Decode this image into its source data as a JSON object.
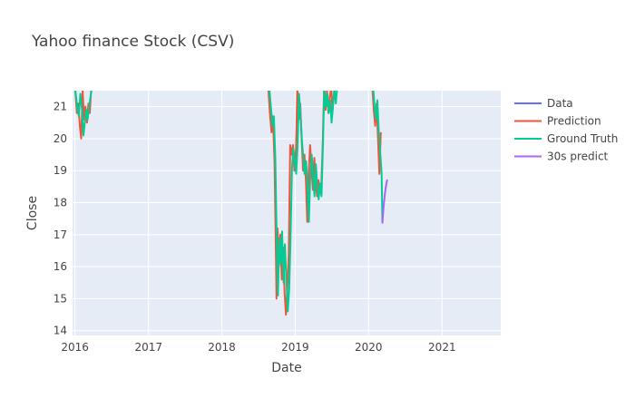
{
  "chart_data": {
    "type": "line",
    "title": "Yahoo finance Stock (CSV)",
    "xlabel": "Date",
    "ylabel": "Close",
    "xlim": [
      "2015-12-20",
      "2021-10-20"
    ],
    "ylim": [
      13.85,
      21.5
    ],
    "x_ticks": [
      "2016",
      "2017",
      "2018",
      "2019",
      "2020",
      "2021"
    ],
    "x_tick_dates": [
      "2016-01-01",
      "2017-01-01",
      "2018-01-01",
      "2019-01-01",
      "2020-01-01",
      "2021-01-01"
    ],
    "y_ticks": [
      14,
      15,
      16,
      17,
      18,
      19,
      20,
      21
    ],
    "grid": true,
    "legend_position": "right",
    "colors": {
      "Data": "#636efa",
      "Prediction": "#ef553b",
      "Ground Truth": "#00cc96",
      "30s predict": "#ab63fa"
    },
    "series": [
      {
        "name": "Data",
        "points": []
      },
      {
        "name": "Prediction",
        "points": [
          [
            "2016-01-01",
            21.6
          ],
          [
            "2016-01-10",
            20.8
          ],
          [
            "2016-01-18",
            21.1
          ],
          [
            "2016-01-25",
            20.4
          ],
          [
            "2016-02-01",
            20.0
          ],
          [
            "2016-02-08",
            21.5
          ],
          [
            "2016-02-15",
            20.6
          ],
          [
            "2016-02-22",
            21.0
          ],
          [
            "2016-03-01",
            20.5
          ],
          [
            "2016-03-08",
            21.1
          ],
          [
            "2016-03-15",
            20.8
          ],
          [
            "2016-03-22",
            21.6
          ],
          [
            "2018-08-20",
            21.6
          ],
          [
            "2018-08-28",
            20.8
          ],
          [
            "2018-09-05",
            20.2
          ],
          [
            "2018-09-12",
            20.7
          ],
          [
            "2018-09-20",
            19.3
          ],
          [
            "2018-09-25",
            17.3
          ],
          [
            "2018-09-30",
            15.0
          ],
          [
            "2018-10-05",
            17.2
          ],
          [
            "2018-10-12",
            16.0
          ],
          [
            "2018-10-19",
            17.0
          ],
          [
            "2018-10-26",
            15.6
          ],
          [
            "2018-11-02",
            16.6
          ],
          [
            "2018-11-09",
            15.2
          ],
          [
            "2018-11-16",
            14.5
          ],
          [
            "2018-11-23",
            15.4
          ],
          [
            "2018-11-30",
            16.4
          ],
          [
            "2018-12-07",
            19.8
          ],
          [
            "2018-12-14",
            19.5
          ],
          [
            "2018-12-21",
            19.8
          ],
          [
            "2018-12-28",
            19.0
          ],
          [
            "2019-01-05",
            19.7
          ],
          [
            "2019-01-12",
            21.6
          ],
          [
            "2019-01-19",
            20.6
          ],
          [
            "2019-01-26",
            21.1
          ],
          [
            "2019-02-02",
            20.0
          ],
          [
            "2019-02-09",
            19.0
          ],
          [
            "2019-02-16",
            19.5
          ],
          [
            "2019-02-23",
            18.7
          ],
          [
            "2019-03-02",
            17.4
          ],
          [
            "2019-03-09",
            18.9
          ],
          [
            "2019-03-16",
            19.8
          ],
          [
            "2019-03-23",
            19.1
          ],
          [
            "2019-03-30",
            18.4
          ],
          [
            "2019-04-06",
            19.4
          ],
          [
            "2019-04-13",
            18.6
          ],
          [
            "2019-04-20",
            18.2
          ],
          [
            "2019-04-27",
            18.7
          ],
          [
            "2019-05-04",
            18.3
          ],
          [
            "2019-05-11",
            18.5
          ],
          [
            "2019-05-18",
            19.9
          ],
          [
            "2019-05-25",
            21.6
          ],
          [
            "2019-06-01",
            20.9
          ],
          [
            "2019-06-08",
            21.5
          ],
          [
            "2019-06-15",
            20.8
          ],
          [
            "2019-06-22",
            21.3
          ],
          [
            "2019-06-29",
            21.6
          ],
          [
            "2019-07-06",
            20.9
          ],
          [
            "2019-07-13",
            21.4
          ],
          [
            "2019-07-20",
            21.6
          ],
          [
            "2020-01-20",
            21.6
          ],
          [
            "2020-01-27",
            20.9
          ],
          [
            "2020-02-03",
            20.4
          ],
          [
            "2020-02-10",
            21.1
          ],
          [
            "2020-02-17",
            20.0
          ],
          [
            "2020-02-24",
            18.9
          ],
          [
            "2020-03-02",
            20.2
          ]
        ]
      },
      {
        "name": "Ground Truth",
        "points": [
          [
            "2016-01-01",
            21.6
          ],
          [
            "2016-01-12",
            21.0
          ],
          [
            "2016-01-20",
            20.7
          ],
          [
            "2016-01-28",
            21.4
          ],
          [
            "2016-02-05",
            20.9
          ],
          [
            "2016-02-12",
            20.1
          ],
          [
            "2016-02-19",
            20.5
          ],
          [
            "2016-02-26",
            20.9
          ],
          [
            "2016-03-04",
            20.6
          ],
          [
            "2016-03-11",
            21.0
          ],
          [
            "2016-03-18",
            21.3
          ],
          [
            "2016-03-25",
            21.6
          ],
          [
            "2018-08-25",
            21.6
          ],
          [
            "2018-09-02",
            21.0
          ],
          [
            "2018-09-10",
            20.4
          ],
          [
            "2018-09-17",
            20.7
          ],
          [
            "2018-09-24",
            19.4
          ],
          [
            "2018-10-01",
            16.9
          ],
          [
            "2018-10-07",
            15.1
          ],
          [
            "2018-10-14",
            16.9
          ],
          [
            "2018-10-21",
            16.1
          ],
          [
            "2018-10-28",
            17.1
          ],
          [
            "2018-11-04",
            15.5
          ],
          [
            "2018-11-11",
            16.7
          ],
          [
            "2018-11-18",
            15.6
          ],
          [
            "2018-11-25",
            14.6
          ],
          [
            "2018-12-02",
            15.3
          ],
          [
            "2018-12-09",
            16.9
          ],
          [
            "2018-12-16",
            19.1
          ],
          [
            "2018-12-23",
            19.7
          ],
          [
            "2018-12-30",
            19.3
          ],
          [
            "2019-01-06",
            18.9
          ],
          [
            "2019-01-13",
            19.8
          ],
          [
            "2019-01-20",
            21.4
          ],
          [
            "2019-01-27",
            20.8
          ],
          [
            "2019-02-03",
            20.0
          ],
          [
            "2019-02-10",
            19.4
          ],
          [
            "2019-02-17",
            18.9
          ],
          [
            "2019-02-24",
            19.3
          ],
          [
            "2019-03-03",
            18.6
          ],
          [
            "2019-03-10",
            17.4
          ],
          [
            "2019-03-17",
            18.8
          ],
          [
            "2019-03-24",
            19.5
          ],
          [
            "2019-03-31",
            18.9
          ],
          [
            "2019-04-07",
            18.2
          ],
          [
            "2019-04-14",
            19.2
          ],
          [
            "2019-04-21",
            18.5
          ],
          [
            "2019-04-28",
            18.1
          ],
          [
            "2019-05-05",
            18.6
          ],
          [
            "2019-05-12",
            18.2
          ],
          [
            "2019-05-19",
            19.8
          ],
          [
            "2019-05-26",
            21.6
          ],
          [
            "2019-06-03",
            21.0
          ],
          [
            "2019-06-10",
            21.4
          ],
          [
            "2019-06-17",
            20.8
          ],
          [
            "2019-06-24",
            21.2
          ],
          [
            "2019-07-01",
            20.5
          ],
          [
            "2019-07-08",
            21.0
          ],
          [
            "2019-07-15",
            21.6
          ],
          [
            "2019-07-22",
            21.1
          ],
          [
            "2019-07-29",
            21.6
          ],
          [
            "2020-01-24",
            21.6
          ],
          [
            "2020-01-31",
            21.0
          ],
          [
            "2020-02-07",
            20.6
          ],
          [
            "2020-02-14",
            21.2
          ],
          [
            "2020-02-21",
            20.2
          ],
          [
            "2020-02-28",
            19.6
          ],
          [
            "2020-03-06",
            18.9
          ],
          [
            "2020-03-10",
            17.4
          ]
        ]
      },
      {
        "name": "30s predict",
        "points": [
          [
            "2020-03-10",
            17.35
          ],
          [
            "2020-03-14",
            17.7
          ],
          [
            "2020-03-18",
            18.0
          ],
          [
            "2020-03-22",
            18.25
          ],
          [
            "2020-03-26",
            18.45
          ],
          [
            "2020-03-30",
            18.6
          ],
          [
            "2020-04-03",
            18.72
          ]
        ]
      }
    ]
  }
}
